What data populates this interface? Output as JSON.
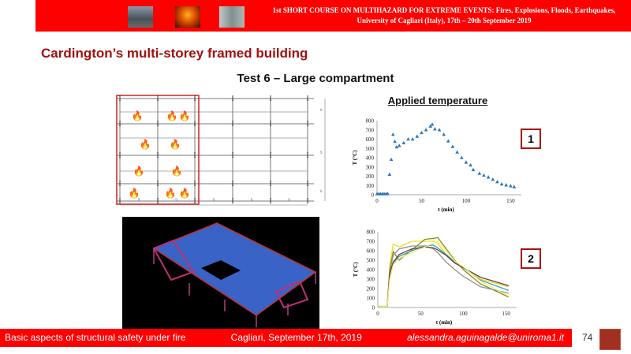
{
  "header": {
    "line1": "1st SHORT COURSE ON MULTIHAZARD FOR EXTREME EVENTS: Fires, Explosions, Floods, Earthquakes,",
    "line2": "University of Cagliari (Italy), 17th – 20th September 2019"
  },
  "title": "Cardington’s multi-storey framed building",
  "subtitle": "Test 6 – Large compartment",
  "plan": {
    "dimensions_x": [
      "9",
      "9",
      "9",
      "9",
      "9"
    ],
    "dimensions_y": [
      "6",
      "9",
      "6"
    ],
    "fire_icon": "fire-icon"
  },
  "chart1_title": "Applied temperature",
  "label1": "1",
  "label2": "2",
  "chart_data": [
    {
      "type": "scatter",
      "title": "Applied temperature",
      "xlabel": "t (min)",
      "ylabel": "T (°C)",
      "xlim": [
        0,
        155
      ],
      "ylim": [
        0,
        800
      ],
      "xticks": [
        "0",
        "50",
        "100",
        "150"
      ],
      "yticks": [
        "0",
        "100",
        "200",
        "300",
        "400",
        "500",
        "600",
        "700",
        "800"
      ],
      "color": "#2e75b6",
      "marker": "triangle",
      "x": [
        0,
        2,
        4,
        6,
        8,
        10,
        12,
        14,
        16,
        18,
        20,
        22,
        25,
        30,
        35,
        40,
        45,
        50,
        55,
        60,
        62,
        65,
        70,
        75,
        80,
        85,
        90,
        95,
        100,
        105,
        108,
        115,
        120,
        125,
        130,
        135,
        140,
        145,
        150,
        154
      ],
      "y": [
        10,
        10,
        10,
        10,
        10,
        10,
        12,
        220,
        380,
        650,
        575,
        515,
        530,
        560,
        600,
        600,
        630,
        670,
        700,
        740,
        760,
        710,
        700,
        650,
        580,
        520,
        460,
        400,
        350,
        320,
        270,
        230,
        210,
        190,
        165,
        140,
        115,
        105,
        95,
        85
      ]
    },
    {
      "type": "line",
      "xlabel": "t (min)",
      "ylabel": "T (°C)",
      "xlim": [
        0,
        155
      ],
      "ylim": [
        0,
        800
      ],
      "xticks": [
        "0",
        "50",
        "100",
        "150"
      ],
      "yticks": [
        "0",
        "100",
        "200",
        "300",
        "400",
        "500",
        "600",
        "700",
        "800"
      ],
      "x": [
        0,
        11,
        14,
        18,
        25,
        40,
        55,
        65,
        70,
        80,
        90,
        100,
        120,
        153
      ],
      "series": [
        {
          "color": "#e8e020",
          "values": [
            15,
            15,
            450,
            670,
            640,
            700,
            700,
            700,
            680,
            560,
            470,
            420,
            300,
            220
          ]
        },
        {
          "color": "#8a8a20",
          "values": [
            15,
            15,
            400,
            590,
            500,
            610,
            720,
            730,
            740,
            620,
            500,
            400,
            250,
            110
          ]
        },
        {
          "color": "#909090",
          "values": [
            15,
            15,
            380,
            550,
            620,
            650,
            650,
            620,
            580,
            480,
            400,
            330,
            220,
            150
          ]
        },
        {
          "color": "#3aa0c0",
          "values": [
            15,
            15,
            350,
            470,
            540,
            600,
            650,
            660,
            630,
            560,
            480,
            420,
            290,
            180
          ]
        },
        {
          "color": "#704040",
          "values": [
            15,
            15,
            360,
            480,
            560,
            620,
            640,
            630,
            610,
            550,
            470,
            420,
            320,
            230
          ]
        },
        {
          "color": "#f0f070",
          "values": [
            15,
            15,
            300,
            450,
            520,
            580,
            640,
            680,
            700,
            600,
            490,
            430,
            280,
            120
          ]
        }
      ]
    }
  ],
  "footer": {
    "course": "Basic aspects of structural safety under fire",
    "place_date": "Cagliari, September 17th, 2019",
    "email": "alessandra.aguinagalde@uniroma1.it",
    "page": "74"
  }
}
